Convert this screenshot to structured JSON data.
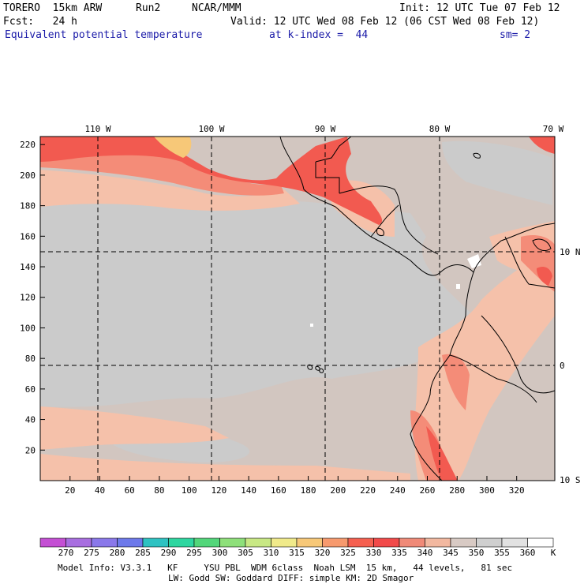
{
  "header": {
    "model": "TORERO  15km ARW",
    "run": "Run2",
    "org": "NCAR/MMM",
    "init": "Init: 12 UTC Tue 07 Feb 12",
    "fcst": "Fcst:   24 h",
    "valid": "Valid: 12 UTC Wed 08 Feb 12 (06 CST Wed 08 Feb 12)",
    "field": "Equivalent potential temperature",
    "level": "at k-index =  44",
    "smooth": "sm= 2"
  },
  "map": {
    "lon_labels": [
      "110 W",
      "100 W",
      "90 W",
      "80 W",
      "70 W"
    ],
    "lat_labels": [
      "10 N",
      "0",
      "10 S"
    ],
    "x_ticks": [
      "20",
      "40",
      "60",
      "80",
      "100",
      "120",
      "140",
      "160",
      "180",
      "200",
      "220",
      "240",
      "260",
      "280",
      "300",
      "320"
    ],
    "y_ticks": [
      "20",
      "40",
      "60",
      "80",
      "100",
      "120",
      "140",
      "160",
      "180",
      "200",
      "220"
    ]
  },
  "colorbar": {
    "unit": "K",
    "labels": [
      "270",
      "275",
      "280",
      "285",
      "290",
      "295",
      "300",
      "305",
      "310",
      "315",
      "320",
      "325",
      "330",
      "335",
      "340",
      "345",
      "350",
      "355",
      "360"
    ],
    "colors": [
      "#c44fd4",
      "#a86ee0",
      "#8a78ea",
      "#6d79ea",
      "#2ec2c2",
      "#2ed6a0",
      "#52d67a",
      "#8ee07a",
      "#c8e884",
      "#f0ea8a",
      "#f7c878",
      "#f79a6e",
      "#f56050",
      "#f24a4a",
      "#f08a78",
      "#f2b8a0",
      "#d8cac4",
      "#cfcfcf",
      "#e2e2e2",
      "#ffffff"
    ]
  },
  "footer": {
    "line1": "Model Info: V3.3.1   KF     YSU PBL  WDM 6class  Noah LSM  15 km,   44 levels,   81 sec",
    "line2": "LW: Godd SW: Goddard DIFF: simple KM: 2D Smagor"
  },
  "field_colors": {
    "background": "#d2c6c0",
    "low": "#cbcbcb",
    "warm": "#f5c1aa",
    "warmer": "#f48c78",
    "hot": "#f25a50",
    "hottest": "#f7c878",
    "white": "#ffffff"
  }
}
